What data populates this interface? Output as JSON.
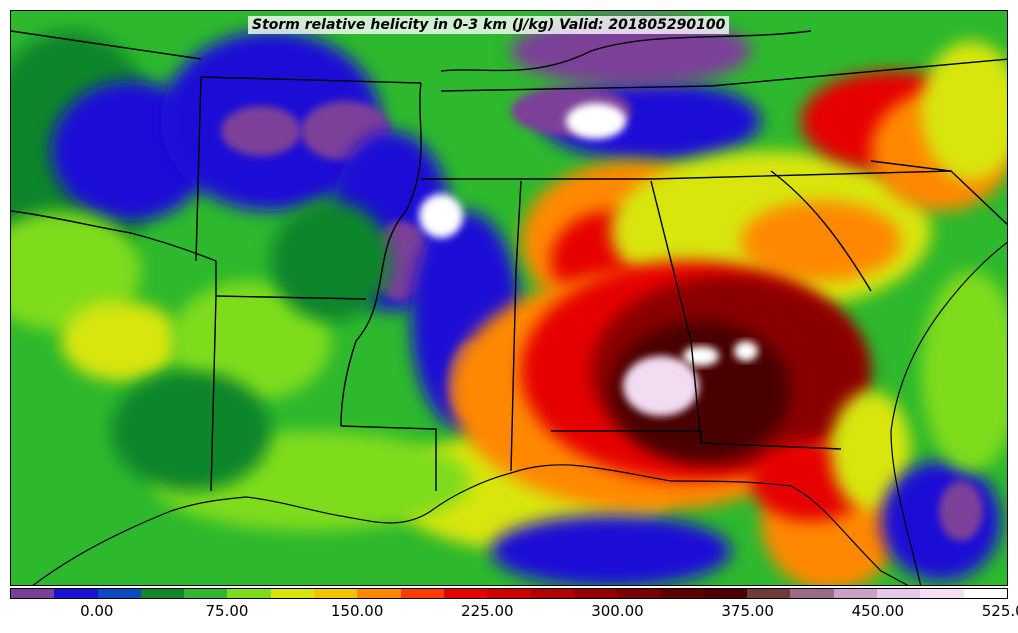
{
  "title": "Storm relative helicity in 0-3 km (J/kg) Valid: 201805290100",
  "colorbar": {
    "colors": [
      "#7b3f99",
      "#1a10d6",
      "#0a49c0",
      "#11852a",
      "#2db82d",
      "#7fdc1a",
      "#d8e60b",
      "#f4c300",
      "#ff8800",
      "#ff3c00",
      "#e60000",
      "#cc0000",
      "#b00000",
      "#960000",
      "#7a0000",
      "#5c0000",
      "#4a0000",
      "#6e3a3a",
      "#9a6a8a",
      "#caa0c8",
      "#e8c8e8",
      "#f5e0f5",
      "#ffffff"
    ],
    "tick_labels": [
      "0.00",
      "75.00",
      "150.00",
      "225.00",
      "300.00",
      "375.00",
      "450.00",
      "525.00"
    ],
    "tick_segment_index": [
      2,
      5,
      8,
      11,
      14,
      17,
      20,
      23
    ]
  },
  "map": {
    "background_color": "#2db82d",
    "region_colors": {
      "purple": "#7b3f99",
      "blue": "#1a10d6",
      "green": "#11852a",
      "lightgreen": "#2db82d",
      "lime": "#7fdc1a",
      "yellow": "#d8e60b",
      "orange": "#ff8800",
      "red": "#e60000",
      "darkred": "#8a0000",
      "maroon": "#4a0000",
      "pink": "#f2dcf2",
      "white": "#ffffff"
    }
  }
}
